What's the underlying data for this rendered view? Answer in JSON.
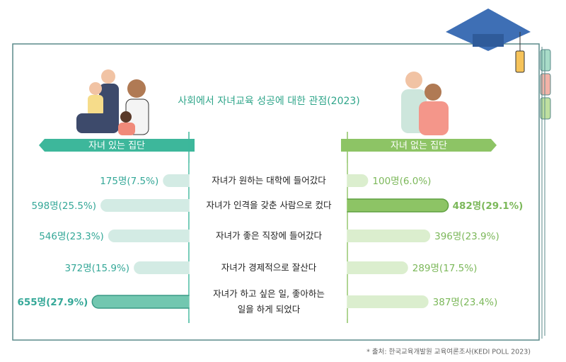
{
  "chart_data": {
    "type": "butterfly-bar",
    "title": "사회에서 자녀교육 성공에 대한 관점(2023)",
    "categories": [
      "자녀가 원하는 대학에 들어갔다",
      "자녀가 인격을 갖춘 사람으로 컸다",
      "자녀가 좋은 직장에 들어갔다",
      "자녀가 경제적으로 잘산다",
      "자녀가 하고 싶은 일, 좋아하는\n일을 하게 되었다"
    ],
    "series": [
      {
        "name": "자녀 있는 집단",
        "color": "#3db79b",
        "values": [
          7.5,
          25.5,
          23.3,
          15.9,
          27.9
        ],
        "value_labels": [
          "175명(7.5%)",
          "598명(25.5%)",
          "546명(23.3%)",
          "372명(15.9%)",
          "655명(27.9%)"
        ]
      },
      {
        "name": "자녀 없는 집단",
        "color": "#8dc465",
        "values": [
          6.0,
          29.1,
          23.9,
          17.5,
          23.4
        ],
        "value_labels": [
          "100명(6.0%)",
          "482명(29.1%)",
          "396명(23.9%)",
          "289명(17.5%)",
          "387명(23.4%)"
        ]
      }
    ],
    "source": "* 출처: 한국교육개발원 교육여론조사(KEDI POLL 2023)"
  }
}
